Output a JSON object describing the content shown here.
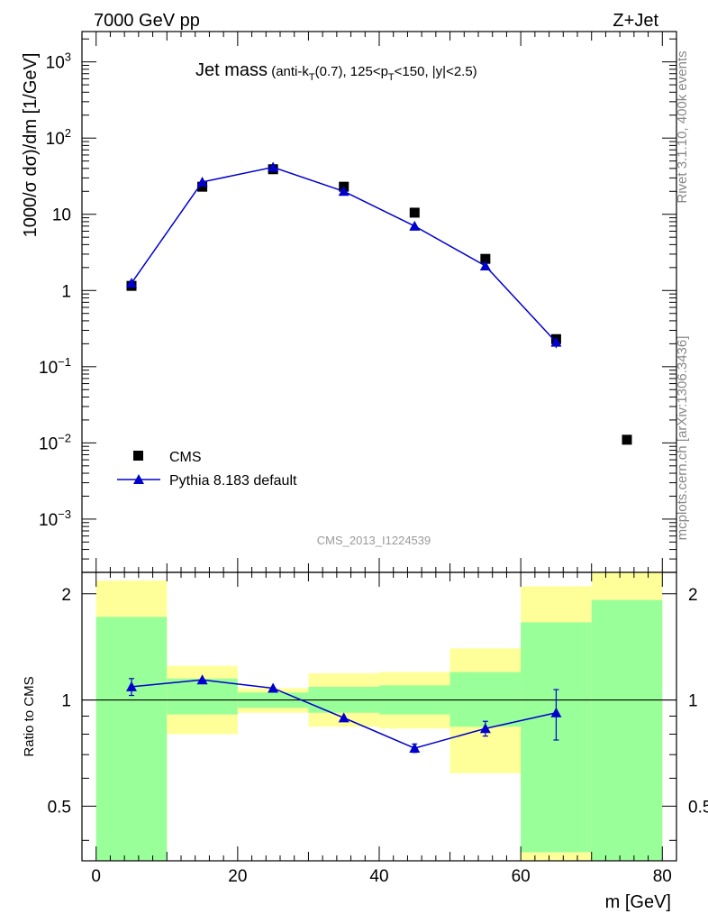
{
  "header": {
    "left": "7000 GeV pp",
    "right": "Z+Jet"
  },
  "side_labels": {
    "rivet": "Rivet 3.1.10,  400k events",
    "mcplots": "mcplots.cern.ch [arXiv:1306.3436]"
  },
  "chart_data": [
    {
      "type": "scatter",
      "title_main": "Jet mass",
      "title_sub": "(anti-kT(0.7), 125<pT<150, |y|<2.5)",
      "ylabel": "1000/σ dσ/dm [1/GeV]",
      "xlabel": "m [GeV]",
      "yscale": "log",
      "xlim": [
        -2,
        82
      ],
      "ylim": [
        0.0002,
        2500
      ],
      "watermark": "CMS_2013_I1224539",
      "y_ticks": [
        {
          "v": 1000,
          "base": "10",
          "exp": "3"
        },
        {
          "v": 100,
          "base": "10",
          "exp": "2"
        },
        {
          "v": 10,
          "base": "10",
          "exp": ""
        },
        {
          "v": 1,
          "base": "1",
          "exp": ""
        },
        {
          "v": 0.1,
          "base": "10",
          "exp": "−1"
        },
        {
          "v": 0.01,
          "base": "10",
          "exp": "−2"
        },
        {
          "v": 0.001,
          "base": "10",
          "exp": "−3"
        }
      ],
      "series": [
        {
          "name": "CMS",
          "marker": "square",
          "color": "#000000",
          "x": [
            5,
            15,
            25,
            35,
            45,
            55,
            65,
            75
          ],
          "y": [
            1.15,
            23,
            39,
            23,
            10.5,
            2.6,
            0.23,
            0.011
          ]
        },
        {
          "name": "Pythia 8.183 default",
          "marker": "triangle",
          "color": "#0000cc",
          "x": [
            5,
            15,
            25,
            35,
            45,
            55,
            65
          ],
          "y": [
            1.25,
            26.5,
            41.5,
            20,
            7,
            2.1,
            0.21
          ],
          "yerr_low": [
            0,
            0,
            0,
            0,
            0,
            0,
            0.035
          ],
          "yerr_high": [
            0,
            0,
            0,
            0,
            0,
            0,
            0.03
          ]
        }
      ]
    },
    {
      "type": "ratio",
      "ylabel": "Ratio to CMS",
      "xlabel": "m [GeV]",
      "yscale": "log",
      "xlim": [
        -2,
        82
      ],
      "ylim": [
        0.35,
        2.3
      ],
      "y_ticks": [
        0.5,
        1,
        2
      ],
      "y_tick_labels": [
        "0.5",
        "1",
        "2"
      ],
      "x_ticks": [
        0,
        20,
        40,
        60,
        80
      ],
      "x_tick_labels": [
        "0",
        "20",
        "40",
        "60",
        "80"
      ],
      "bands": [
        {
          "x0": 0,
          "x1": 10,
          "yellow_lo": 0.3,
          "yellow_hi": 2.18,
          "green_lo": 0.3,
          "green_hi": 1.72
        },
        {
          "x0": 10,
          "x1": 20,
          "yellow_lo": 0.8,
          "yellow_hi": 1.25,
          "green_lo": 0.91,
          "green_hi": 1.15
        },
        {
          "x0": 20,
          "x1": 30,
          "yellow_lo": 0.92,
          "yellow_hi": 1.08,
          "green_lo": 0.95,
          "green_hi": 1.05
        },
        {
          "x0": 30,
          "x1": 40,
          "yellow_lo": 0.84,
          "yellow_hi": 1.19,
          "green_lo": 0.92,
          "green_hi": 1.09
        },
        {
          "x0": 40,
          "x1": 50,
          "yellow_lo": 0.83,
          "yellow_hi": 1.2,
          "green_lo": 0.91,
          "green_hi": 1.1
        },
        {
          "x0": 50,
          "x1": 60,
          "yellow_lo": 0.62,
          "yellow_hi": 1.4,
          "green_lo": 0.84,
          "green_hi": 1.2
        },
        {
          "x0": 60,
          "x1": 70,
          "yellow_lo": 0.3,
          "yellow_hi": 2.1,
          "green_lo": 0.37,
          "green_hi": 1.66
        },
        {
          "x0": 70,
          "x1": 80,
          "yellow_lo": 0.3,
          "yellow_hi": 2.5,
          "green_lo": 0.3,
          "green_hi": 1.92
        }
      ],
      "series": [
        {
          "name": "Pythia 8.183 default",
          "color": "#0000cc",
          "x": [
            5,
            15,
            25,
            35,
            45,
            55,
            65
          ],
          "y": [
            1.09,
            1.14,
            1.08,
            0.89,
            0.73,
            0.83,
            0.92
          ],
          "yerr_low": [
            0.06,
            0,
            0,
            0,
            0.02,
            0.04,
            0.15
          ],
          "yerr_high": [
            0.06,
            0,
            0,
            0,
            0.02,
            0.04,
            0.15
          ]
        }
      ]
    }
  ]
}
